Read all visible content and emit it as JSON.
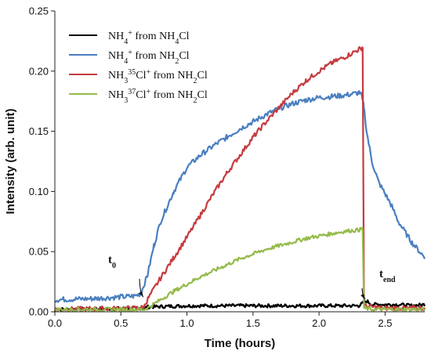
{
  "chart_data": {
    "type": "line",
    "xlabel": "Time (hours)",
    "ylabel": "Intensity (arb. unit)",
    "xlim": [
      0,
      2.8
    ],
    "ylim": [
      0,
      0.25
    ],
    "xticks": [
      "0.0",
      "0.5",
      "1.0",
      "1.5",
      "2.0",
      "2.5"
    ],
    "yticks": [
      "0.00",
      "0.05",
      "0.10",
      "0.15",
      "0.20",
      "0.25"
    ],
    "grid": false,
    "legend_position": "top-left",
    "series": [
      {
        "name": "NH4+ from NH4Cl",
        "name_parts": [
          [
            "NH"
          ],
          [
            "4",
            "sub"
          ],
          [
            "+",
            "sup"
          ],
          [
            " from NH"
          ],
          [
            "4",
            "sub"
          ],
          [
            "Cl"
          ]
        ],
        "color": "#000000",
        "x": [
          0.0,
          0.68,
          0.7,
          1.0,
          1.5,
          2.0,
          2.3,
          2.33,
          2.36,
          2.4,
          2.5,
          2.6,
          2.7,
          2.8
        ],
        "values": [
          0.002,
          0.003,
          0.004,
          0.005,
          0.005,
          0.005,
          0.005,
          0.007,
          0.009,
          0.006,
          0.006,
          0.006,
          0.005,
          0.006
        ]
      },
      {
        "name": "NH4+ from NH2Cl",
        "name_parts": [
          [
            "NH"
          ],
          [
            "4",
            "sub"
          ],
          [
            "+",
            "sup"
          ],
          [
            " from NH"
          ],
          [
            "2",
            "sub"
          ],
          [
            "Cl"
          ]
        ],
        "color": "#4a7fc0",
        "x": [
          0.0,
          0.3,
          0.6,
          0.65,
          0.7,
          0.75,
          0.8,
          0.9,
          1.0,
          1.1,
          1.2,
          1.3,
          1.4,
          1.5,
          1.6,
          1.7,
          1.8,
          1.9,
          2.0,
          2.1,
          2.2,
          2.3,
          2.32,
          2.34,
          2.36,
          2.4,
          2.45,
          2.5,
          2.55,
          2.6,
          2.7,
          2.8
        ],
        "values": [
          0.01,
          0.011,
          0.013,
          0.015,
          0.03,
          0.055,
          0.075,
          0.1,
          0.12,
          0.13,
          0.138,
          0.145,
          0.152,
          0.158,
          0.164,
          0.169,
          0.173,
          0.176,
          0.178,
          0.179,
          0.18,
          0.182,
          0.18,
          0.17,
          0.15,
          0.125,
          0.108,
          0.098,
          0.088,
          0.075,
          0.058,
          0.045
        ]
      },
      {
        "name": "NH3 35Cl+ from NH2Cl",
        "name_parts": [
          [
            "NH"
          ],
          [
            "3",
            "sub"
          ],
          [
            "35",
            "sup"
          ],
          [
            "Cl"
          ],
          [
            "+",
            "sup"
          ],
          [
            " from NH"
          ],
          [
            "2",
            "sub"
          ],
          [
            "Cl"
          ]
        ],
        "color": "#c53b3f",
        "x": [
          0.0,
          0.65,
          0.68,
          0.7,
          0.8,
          0.9,
          1.0,
          1.1,
          1.2,
          1.3,
          1.4,
          1.5,
          1.6,
          1.7,
          1.8,
          1.9,
          2.0,
          2.1,
          2.2,
          2.3,
          2.33,
          2.34,
          2.4,
          2.5,
          2.6,
          2.7,
          2.8
        ],
        "values": [
          0.002,
          0.003,
          0.005,
          0.01,
          0.028,
          0.045,
          0.062,
          0.08,
          0.098,
          0.115,
          0.13,
          0.145,
          0.158,
          0.17,
          0.182,
          0.192,
          0.2,
          0.207,
          0.212,
          0.218,
          0.22,
          0.005,
          0.004,
          0.003,
          0.003,
          0.003,
          0.003
        ]
      },
      {
        "name": "NH3 37Cl+ from NH2Cl",
        "name_parts": [
          [
            "NH"
          ],
          [
            "3",
            "sub"
          ],
          [
            "37",
            "sup"
          ],
          [
            "Cl"
          ],
          [
            "+",
            "sup"
          ],
          [
            " from NH"
          ],
          [
            "2",
            "sub"
          ],
          [
            "Cl"
          ]
        ],
        "color": "#95ba4a",
        "x": [
          0.0,
          0.68,
          0.7,
          0.8,
          0.9,
          1.0,
          1.1,
          1.2,
          1.3,
          1.4,
          1.5,
          1.6,
          1.7,
          1.8,
          1.9,
          2.0,
          2.1,
          2.2,
          2.3,
          2.33,
          2.34,
          2.4,
          2.5,
          2.6,
          2.7,
          2.8
        ],
        "values": [
          0.002,
          0.002,
          0.003,
          0.01,
          0.017,
          0.023,
          0.029,
          0.034,
          0.039,
          0.044,
          0.048,
          0.052,
          0.055,
          0.058,
          0.061,
          0.063,
          0.065,
          0.067,
          0.068,
          0.069,
          0.003,
          0.002,
          0.002,
          0.002,
          0.002,
          0.002
        ]
      }
    ],
    "annotations": [
      {
        "label": "t",
        "sub": "0",
        "target_x": 0.67,
        "target_y": 0.011
      },
      {
        "label": "t",
        "sub": "end",
        "target_x": 2.35,
        "target_y": 0.009
      }
    ]
  }
}
